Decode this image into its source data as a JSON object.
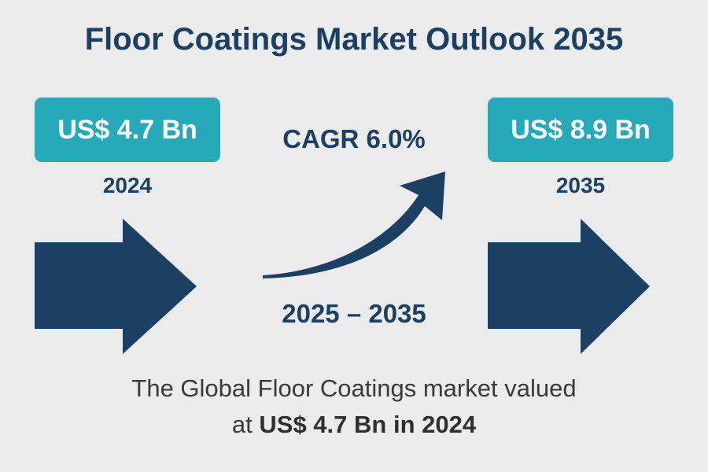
{
  "title": "Floor Coatings Market Outlook 2035",
  "start": {
    "value": "US$ 4.7 Bn",
    "year": "2024"
  },
  "end": {
    "value": "US$ 8.9 Bn",
    "year": "2035"
  },
  "growth": {
    "label": "CAGR 6.0%",
    "period": "2025 – 2035"
  },
  "caption": {
    "line1": "The Global Floor Coatings market valued",
    "line2_prefix": "at ",
    "line2_bold": "US$ 4.7 Bn in 2024"
  },
  "icons": [
    "arrow-right-icon",
    "curved-arrow-up-icon"
  ],
  "colors": {
    "navy": "#1c4063",
    "teal": "#26a9b8",
    "background": "#ebebec"
  }
}
